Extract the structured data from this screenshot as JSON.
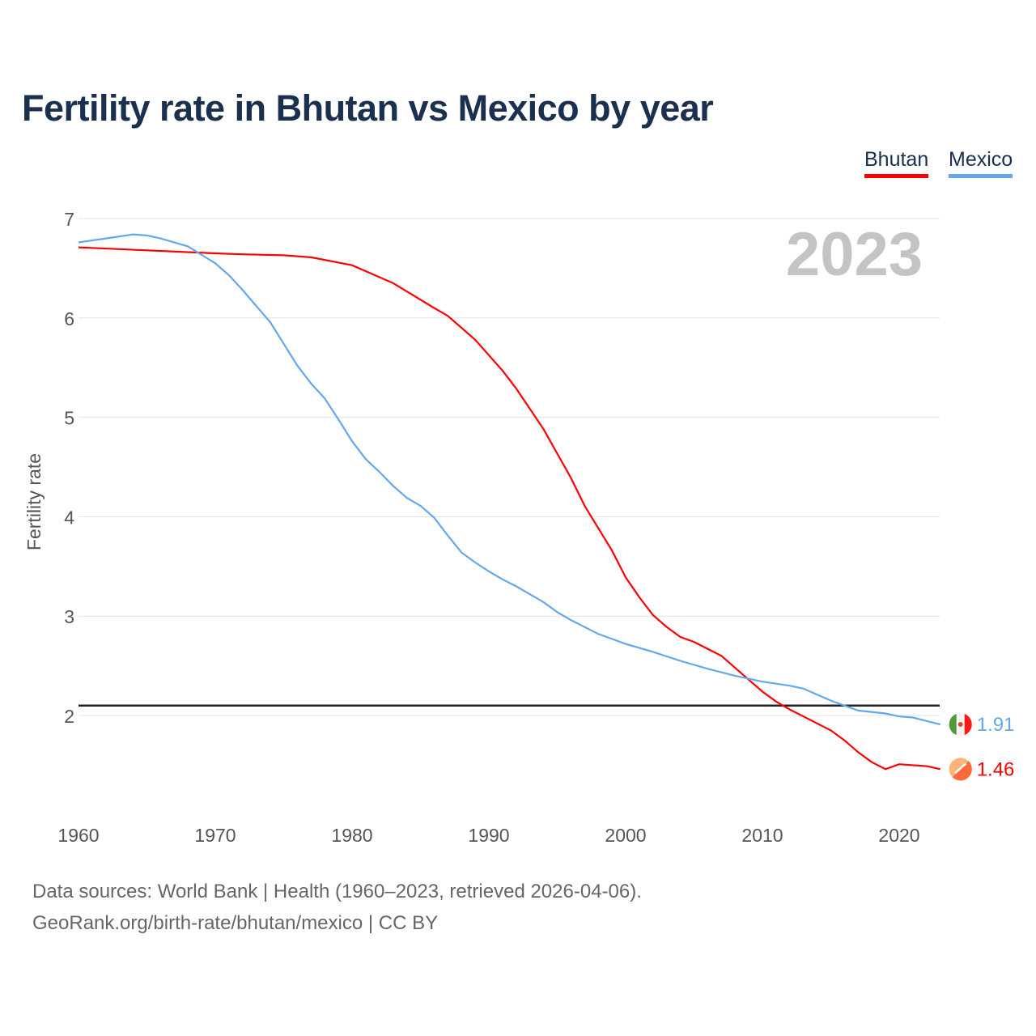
{
  "title": "Fertility rate in Bhutan vs Mexico by year",
  "legend": [
    "Bhutan",
    "Mexico"
  ],
  "year_label": "2023",
  "sources": [
    "Data sources: World Bank | Health (1960–2023, retrieved 2026-04-06).",
    "GeoRank.org/birth-rate/bhutan/mexico | CC BY"
  ],
  "chart_data": {
    "type": "line",
    "title": "Fertility rate in Bhutan vs Mexico by year",
    "xlabel": "",
    "ylabel": "Fertility rate",
    "xlim": [
      1960,
      2023
    ],
    "ylim": [
      1,
      7
    ],
    "xticks": [
      1960,
      1970,
      1980,
      1990,
      2000,
      2010,
      2020
    ],
    "yticks": [
      2,
      3,
      4,
      5,
      6,
      7
    ],
    "grid": true,
    "legend_position": "top-right",
    "reference_line": 2.1,
    "series": [
      {
        "name": "Bhutan",
        "color": "#ff0000",
        "end_label": "1.46",
        "x": [
          1960,
          1965,
          1970,
          1972,
          1975,
          1977,
          1980,
          1983,
          1986,
          1987,
          1989,
          1991,
          1992,
          1994,
          1996,
          1997,
          1999,
          2000,
          2001,
          2002,
          2003,
          2004,
          2005,
          2007,
          2008,
          2009,
          2010,
          2011,
          2012,
          2013,
          2015,
          2016,
          2017,
          2018,
          2019,
          2020,
          2022,
          2023
        ],
        "y": [
          6.71,
          6.68,
          6.65,
          6.64,
          6.63,
          6.61,
          6.53,
          6.35,
          6.1,
          6.02,
          5.78,
          5.47,
          5.29,
          4.88,
          4.39,
          4.11,
          3.66,
          3.39,
          3.19,
          3.01,
          2.89,
          2.79,
          2.74,
          2.6,
          2.48,
          2.36,
          2.24,
          2.14,
          2.06,
          1.99,
          1.85,
          1.75,
          1.63,
          1.53,
          1.46,
          1.51,
          1.49,
          1.46
        ]
      },
      {
        "name": "Mexico",
        "color": "#64a8ec",
        "end_label": "1.91",
        "x": [
          1960,
          1962,
          1964,
          1965,
          1966,
          1968,
          1970,
          1971,
          1972,
          1973,
          1974,
          1975,
          1976,
          1977,
          1978,
          1979,
          1980,
          1981,
          1982,
          1983,
          1984,
          1985,
          1986,
          1987,
          1988,
          1989,
          1990,
          1991,
          1992,
          1993,
          1994,
          1995,
          1996,
          1997,
          1998,
          1999,
          2000,
          2002,
          2004,
          2006,
          2008,
          2010,
          2012,
          2013,
          2014,
          2015,
          2017,
          2019,
          2020,
          2021,
          2023
        ],
        "y": [
          6.76,
          6.8,
          6.84,
          6.83,
          6.8,
          6.72,
          6.55,
          6.43,
          6.28,
          6.12,
          5.96,
          5.74,
          5.52,
          5.34,
          5.19,
          4.98,
          4.76,
          4.58,
          4.45,
          4.31,
          4.19,
          4.11,
          3.99,
          3.81,
          3.64,
          3.54,
          3.45,
          3.37,
          3.3,
          3.22,
          3.14,
          3.04,
          2.96,
          2.89,
          2.82,
          2.77,
          2.72,
          2.64,
          2.55,
          2.47,
          2.4,
          2.34,
          2.3,
          2.27,
          2.21,
          2.15,
          2.05,
          2.02,
          1.99,
          1.98,
          1.91
        ]
      }
    ]
  }
}
